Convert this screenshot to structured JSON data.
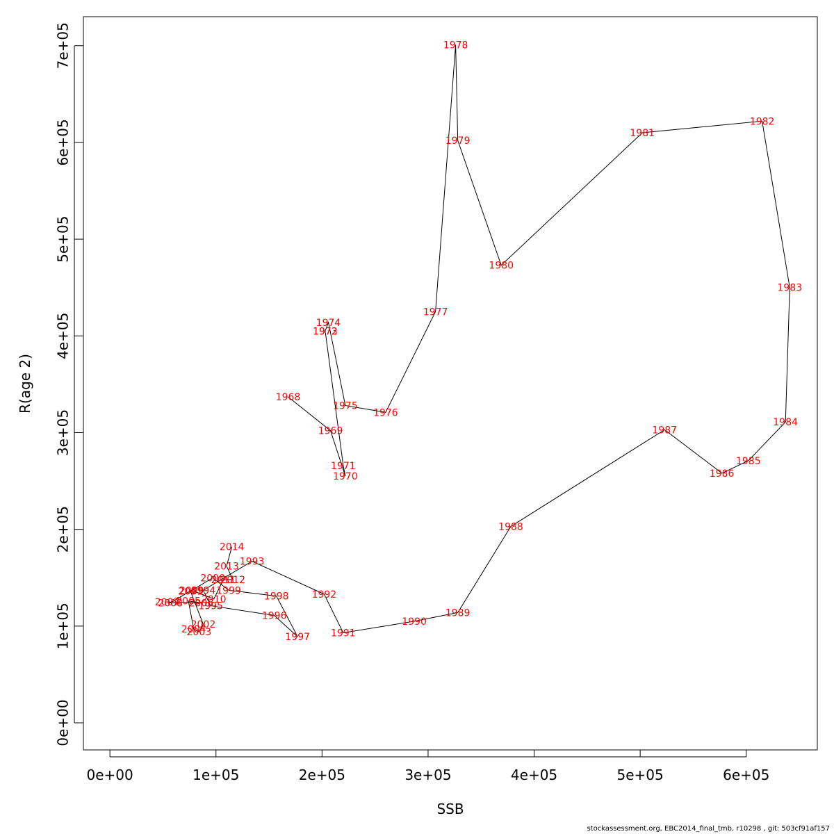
{
  "chart_data": {
    "type": "line",
    "xlabel": "SSB",
    "ylabel": "R(age 2)",
    "xlim": [
      -25000,
      667000
    ],
    "ylim": [
      -28000,
      730000
    ],
    "x_ticks": [
      0,
      100000,
      200000,
      300000,
      400000,
      500000,
      600000
    ],
    "x_tick_labels": [
      "0e+00",
      "1e+05",
      "2e+05",
      "3e+05",
      "4e+05",
      "5e+05",
      "6e+05"
    ],
    "y_ticks": [
      0,
      100000,
      200000,
      300000,
      400000,
      500000,
      600000,
      700000
    ],
    "y_tick_labels": [
      "0e+00",
      "1e+05",
      "2e+05",
      "3e+05",
      "4e+05",
      "5e+05",
      "6e+05",
      "7e+05"
    ],
    "grid": false,
    "line_color": "#000000",
    "label_color": "#ff0000",
    "points": [
      {
        "year": "1968",
        "ssb": 168000,
        "r": 337000
      },
      {
        "year": "1969",
        "ssb": 208000,
        "r": 302000
      },
      {
        "year": "1970",
        "ssb": 222000,
        "r": 255000
      },
      {
        "year": "1971",
        "ssb": 220000,
        "r": 266000
      },
      {
        "year": "1972",
        "ssb": 203000,
        "r": 405000
      },
      {
        "year": "1973",
        "ssb": 203000,
        "r": 405000
      },
      {
        "year": "1974",
        "ssb": 206000,
        "r": 414000
      },
      {
        "year": "1975",
        "ssb": 222000,
        "r": 328000
      },
      {
        "year": "1976",
        "ssb": 260000,
        "r": 321000
      },
      {
        "year": "1977",
        "ssb": 307000,
        "r": 425000
      },
      {
        "year": "1978",
        "ssb": 326000,
        "r": 701000
      },
      {
        "year": "1979",
        "ssb": 328000,
        "r": 602000
      },
      {
        "year": "1980",
        "ssb": 369000,
        "r": 473000
      },
      {
        "year": "1981",
        "ssb": 502000,
        "r": 610000
      },
      {
        "year": "1982",
        "ssb": 615000,
        "r": 622000
      },
      {
        "year": "1983",
        "ssb": 641000,
        "r": 450000
      },
      {
        "year": "1984",
        "ssb": 637000,
        "r": 311000
      },
      {
        "year": "1985",
        "ssb": 602000,
        "r": 271000
      },
      {
        "year": "1986",
        "ssb": 577000,
        "r": 258000
      },
      {
        "year": "1987",
        "ssb": 523000,
        "r": 303000
      },
      {
        "year": "1988",
        "ssb": 378000,
        "r": 203000
      },
      {
        "year": "1989",
        "ssb": 328000,
        "r": 114000
      },
      {
        "year": "1990",
        "ssb": 287000,
        "r": 105000
      },
      {
        "year": "1991",
        "ssb": 220000,
        "r": 93000
      },
      {
        "year": "1992",
        "ssb": 202000,
        "r": 133000
      },
      {
        "year": "1993",
        "ssb": 134000,
        "r": 167000
      },
      {
        "year": "1994",
        "ssb": 88000,
        "r": 137000
      },
      {
        "year": "1995",
        "ssb": 95000,
        "r": 121000
      },
      {
        "year": "1996",
        "ssb": 155000,
        "r": 111000
      },
      {
        "year": "1997",
        "ssb": 177000,
        "r": 89000
      },
      {
        "year": "1998",
        "ssb": 157000,
        "r": 131000
      },
      {
        "year": "1999",
        "ssb": 112000,
        "r": 137000
      },
      {
        "year": "2000",
        "ssb": 97000,
        "r": 150000
      },
      {
        "year": "2001",
        "ssb": 76000,
        "r": 136000
      },
      {
        "year": "2002",
        "ssb": 88000,
        "r": 102000
      },
      {
        "year": "2003",
        "ssb": 84000,
        "r": 94000
      },
      {
        "year": "2004",
        "ssb": 79000,
        "r": 97000
      },
      {
        "year": "2005",
        "ssb": 74000,
        "r": 126000
      },
      {
        "year": "2006",
        "ssb": 86000,
        "r": 124000
      },
      {
        "year": "2007",
        "ssb": 54000,
        "r": 125000
      },
      {
        "year": "2008",
        "ssb": 57000,
        "r": 124000
      },
      {
        "year": "2009",
        "ssb": 77000,
        "r": 137000
      },
      {
        "year": "2010",
        "ssb": 98000,
        "r": 128000
      },
      {
        "year": "2011",
        "ssb": 107000,
        "r": 148000
      },
      {
        "year": "2012",
        "ssb": 116000,
        "r": 148000
      },
      {
        "year": "2013",
        "ssb": 110000,
        "r": 162000
      },
      {
        "year": "2014",
        "ssb": 115000,
        "r": 182000
      }
    ]
  },
  "footer": {
    "text": "stockassessment.org, EBC2014_final_tmb, r10298 , git: 503cf91af157"
  }
}
